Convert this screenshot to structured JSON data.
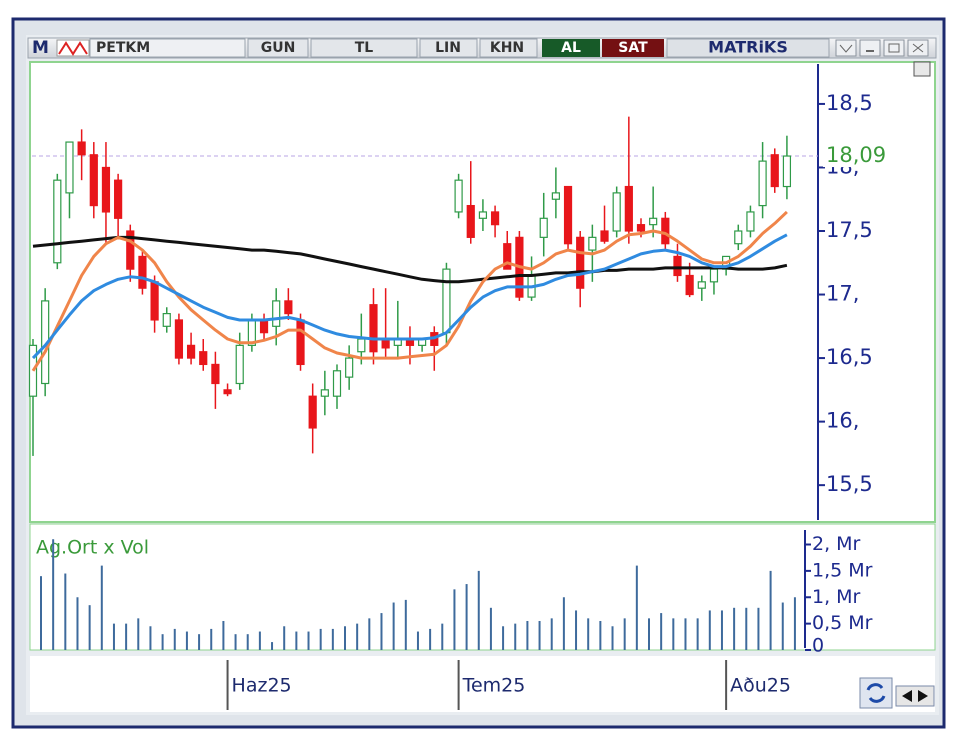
{
  "toolbar": {
    "items": [
      "M",
      "PETKM",
      "GUN",
      "TL",
      "LIN",
      "KHN",
      "AL",
      "SAT",
      "MATRiKS"
    ]
  },
  "chart_data": [
    {
      "type": "candlestick",
      "categories": [
        null,
        null,
        null,
        null,
        null,
        null,
        null,
        null,
        null,
        null,
        null,
        null,
        null,
        null,
        null,
        null,
        "Haz25",
        null,
        null,
        null,
        null,
        null,
        null,
        null,
        null,
        null,
        null,
        null,
        null,
        null,
        null,
        null,
        null,
        null,
        null,
        "Tem25",
        null,
        null,
        null,
        null,
        null,
        null,
        null,
        null,
        null,
        null,
        null,
        null,
        null,
        null,
        null,
        null,
        null,
        null,
        null,
        null,
        null,
        "Aðu25",
        null,
        null,
        null,
        null,
        null
      ],
      "open": [
        16.2,
        16.3,
        17.25,
        17.8,
        18.2,
        18.1,
        18.0,
        17.9,
        17.5,
        17.3,
        17.1,
        16.75,
        16.8,
        16.6,
        16.55,
        16.45,
        16.25,
        16.3,
        16.6,
        16.8,
        16.75,
        16.95,
        16.8,
        16.2,
        16.2,
        16.2,
        16.35,
        16.55,
        16.92,
        16.65,
        16.6,
        16.65,
        16.6,
        16.7,
        16.7,
        17.65,
        17.7,
        17.6,
        17.65,
        17.4,
        17.45,
        16.98,
        17.45,
        17.75,
        17.85,
        17.45,
        17.35,
        17.5,
        17.5,
        17.85,
        17.55,
        17.55,
        17.6,
        17.3,
        17.15,
        17.05,
        17.1,
        17.2,
        17.4,
        17.5,
        17.7,
        18.1,
        17.85
      ],
      "high": [
        16.65,
        17.05,
        17.95,
        18.2,
        18.3,
        18.2,
        18.2,
        17.95,
        17.55,
        17.35,
        17.15,
        16.9,
        16.85,
        16.7,
        16.65,
        16.55,
        16.3,
        16.7,
        16.85,
        16.85,
        17.05,
        17.05,
        16.85,
        16.3,
        16.4,
        16.45,
        16.6,
        16.85,
        17.05,
        17.05,
        16.95,
        16.75,
        16.65,
        16.75,
        17.25,
        17.95,
        18.05,
        17.75,
        17.7,
        17.5,
        17.5,
        17.3,
        17.8,
        18.0,
        17.85,
        17.5,
        17.55,
        17.7,
        17.85,
        18.4,
        17.6,
        17.85,
        17.65,
        17.4,
        17.25,
        17.15,
        17.2,
        17.3,
        17.55,
        17.7,
        18.2,
        18.15,
        18.25
      ],
      "low": [
        15.73,
        16.2,
        17.2,
        17.6,
        17.9,
        17.6,
        17.4,
        17.45,
        17.1,
        17.0,
        16.7,
        16.7,
        16.45,
        16.45,
        16.4,
        16.1,
        16.2,
        16.25,
        16.55,
        16.65,
        16.6,
        16.8,
        16.4,
        15.75,
        16.05,
        16.1,
        16.25,
        16.45,
        16.45,
        16.5,
        16.5,
        16.45,
        16.55,
        16.4,
        16.6,
        17.6,
        17.4,
        17.5,
        17.45,
        17.2,
        16.95,
        16.95,
        17.3,
        17.6,
        17.35,
        16.9,
        17.1,
        17.4,
        17.45,
        17.4,
        17.45,
        17.45,
        17.35,
        17.1,
        16.98,
        16.95,
        17.0,
        17.15,
        17.35,
        17.45,
        17.6,
        17.8,
        17.75
      ],
      "close": [
        16.6,
        16.95,
        17.9,
        18.2,
        18.1,
        17.7,
        17.65,
        17.6,
        17.2,
        17.05,
        16.8,
        16.85,
        16.5,
        16.5,
        16.45,
        16.3,
        16.22,
        16.6,
        16.8,
        16.7,
        16.95,
        16.85,
        16.45,
        15.95,
        16.25,
        16.4,
        16.5,
        16.65,
        16.55,
        16.58,
        16.65,
        16.6,
        16.65,
        16.6,
        17.2,
        17.9,
        17.45,
        17.65,
        17.55,
        17.2,
        16.98,
        17.15,
        17.6,
        17.8,
        17.4,
        17.05,
        17.45,
        17.42,
        17.8,
        17.5,
        17.5,
        17.6,
        17.4,
        17.15,
        17.0,
        17.1,
        17.2,
        17.3,
        17.5,
        17.65,
        18.05,
        17.85,
        18.09
      ],
      "up_color": "#2f9a48",
      "down_color": "#e8161b",
      "lines": [
        {
          "color": "#111111",
          "values": [
            17.38,
            17.39,
            17.4,
            17.41,
            17.42,
            17.43,
            17.44,
            17.45,
            17.45,
            17.44,
            17.43,
            17.42,
            17.41,
            17.4,
            17.39,
            17.38,
            17.37,
            17.36,
            17.35,
            17.35,
            17.34,
            17.33,
            17.32,
            17.3,
            17.28,
            17.26,
            17.24,
            17.22,
            17.2,
            17.18,
            17.16,
            17.14,
            17.12,
            17.11,
            17.1,
            17.1,
            17.11,
            17.12,
            17.13,
            17.14,
            17.15,
            17.15,
            17.16,
            17.17,
            17.17,
            17.18,
            17.18,
            17.19,
            17.19,
            17.2,
            17.2,
            17.2,
            17.21,
            17.21,
            17.21,
            17.21,
            17.21,
            17.21,
            17.2,
            17.2,
            17.2,
            17.21,
            17.23
          ]
        },
        {
          "color": "#f0854a",
          "values": [
            16.4,
            16.55,
            16.75,
            16.95,
            17.15,
            17.3,
            17.4,
            17.45,
            17.42,
            17.35,
            17.25,
            17.1,
            16.98,
            16.88,
            16.8,
            16.72,
            16.65,
            16.62,
            16.62,
            16.64,
            16.67,
            16.72,
            16.72,
            16.65,
            16.58,
            16.54,
            16.52,
            16.5,
            16.5,
            16.5,
            16.5,
            16.51,
            16.52,
            16.53,
            16.6,
            16.75,
            16.95,
            17.1,
            17.2,
            17.25,
            17.22,
            17.2,
            17.25,
            17.32,
            17.35,
            17.33,
            17.32,
            17.35,
            17.42,
            17.47,
            17.48,
            17.5,
            17.48,
            17.42,
            17.35,
            17.28,
            17.25,
            17.25,
            17.3,
            17.38,
            17.48,
            17.56,
            17.65
          ]
        },
        {
          "color": "#2f8be0",
          "values": [
            16.5,
            16.6,
            16.72,
            16.84,
            16.95,
            17.03,
            17.08,
            17.12,
            17.14,
            17.13,
            17.1,
            17.05,
            17.0,
            16.95,
            16.9,
            16.86,
            16.82,
            16.8,
            16.8,
            16.8,
            16.81,
            16.82,
            16.8,
            16.76,
            16.72,
            16.69,
            16.67,
            16.66,
            16.65,
            16.65,
            16.65,
            16.65,
            16.65,
            16.66,
            16.7,
            16.8,
            16.9,
            16.98,
            17.03,
            17.06,
            17.06,
            17.06,
            17.08,
            17.12,
            17.15,
            17.16,
            17.18,
            17.2,
            17.24,
            17.28,
            17.32,
            17.34,
            17.35,
            17.33,
            17.3,
            17.25,
            17.22,
            17.22,
            17.25,
            17.3,
            17.36,
            17.42,
            17.47
          ]
        }
      ],
      "last_value": {
        "value": 18.09,
        "label": "18,09"
      },
      "ylim": [
        15.21,
        18.83
      ],
      "yticks": [
        {
          "value": 15.5,
          "label": "15,5"
        },
        {
          "value": 16,
          "label": "16,"
        },
        {
          "value": 16.5,
          "label": "16,5"
        },
        {
          "value": 17,
          "label": "17,"
        },
        {
          "value": 17.5,
          "label": "17,5"
        },
        {
          "value": 18,
          "label": "18,"
        },
        {
          "value": 18.5,
          "label": "18,5"
        }
      ]
    },
    {
      "type": "bar",
      "label": "Ag.Ort x Vol",
      "color": "#3e6a9c",
      "values": [
        1.4,
        2.1,
        1.45,
        1.0,
        0.85,
        1.6,
        0.5,
        0.5,
        0.6,
        0.45,
        0.3,
        0.4,
        0.35,
        0.3,
        0.4,
        0.55,
        0.3,
        0.3,
        0.35,
        0.15,
        0.45,
        0.35,
        0.35,
        0.4,
        0.4,
        0.45,
        0.5,
        0.6,
        0.7,
        0.9,
        0.95,
        0.35,
        0.4,
        0.5,
        1.15,
        1.25,
        1.5,
        0.8,
        0.45,
        0.5,
        0.55,
        0.55,
        0.6,
        1.0,
        0.75,
        0.6,
        0.55,
        0.45,
        0.6,
        1.6,
        0.6,
        0.7,
        0.6,
        0.6,
        0.6,
        0.75,
        0.75,
        0.8,
        0.8,
        0.8,
        1.5,
        0.9,
        1.0
      ],
      "ylim": [
        0,
        2.37
      ],
      "yticks": [
        0,
        {
          "value": 0.5,
          "label": "0,5 Mr"
        },
        {
          "value": 1,
          "label": "1, Mr"
        },
        {
          "value": 1.5,
          "label": "1,5 Mr"
        },
        {
          "value": 2,
          "label": "2, Mr"
        }
      ]
    }
  ]
}
